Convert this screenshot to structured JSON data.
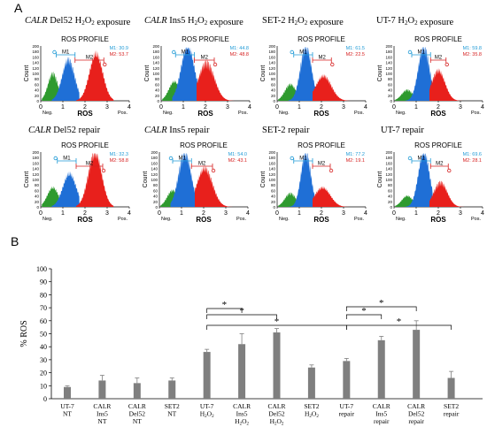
{
  "panel_a": {
    "letter": "A",
    "profile_title": "ROS PROFILE",
    "y_axis_label": "Count",
    "x_axis_label": "ROS",
    "neg_label": "Neg.",
    "pos_label": "Pos.",
    "gate1_label": "M1",
    "gate2_label": "M2",
    "x_ticks": [
      "0",
      "1",
      "2",
      "3",
      "4"
    ],
    "y_ticks": [
      "0",
      "20",
      "40",
      "60",
      "80",
      "100",
      "120",
      "140",
      "160",
      "180",
      "200"
    ],
    "colors": {
      "negative": "#2e9a2e",
      "mid": "#1f6fd6",
      "positive": "#e8201c",
      "m1_text": "#1f9ad6",
      "m2_text": "#d62020"
    },
    "plots": [
      {
        "title_italic": "CALR",
        "title_rest": " Del52 H2O2 exposure",
        "m1_text": "M1: 30.9",
        "m2_text": "M2: 53.7"
      },
      {
        "title_italic": "CALR",
        "title_rest": " Ins5 H2O2 exposure",
        "m1_text": "M1: 44.8",
        "m2_text": "M2: 48.8"
      },
      {
        "title_italic": "",
        "title_rest": "SET-2 H2O2 exposure",
        "m1_text": "M1: 61.5",
        "m2_text": "M2: 22.5"
      },
      {
        "title_italic": "",
        "title_rest": "UT-7 H2O2 exposure",
        "m1_text": "M1: 59.8",
        "m2_text": "M2: 35.8"
      },
      {
        "title_italic": "CALR",
        "title_rest": " Del52 repair",
        "m1_text": "M1: 32.3",
        "m2_text": "M2: 58.8"
      },
      {
        "title_italic": "CALR",
        "title_rest": " Ins5 repair",
        "m1_text": "M1: 54.0",
        "m2_text": "M2: 43.1"
      },
      {
        "title_italic": "",
        "title_rest": "SET-2 repair",
        "m1_text": "M1: 77.2",
        "m2_text": "M2: 19.1"
      },
      {
        "title_italic": "",
        "title_rest": "UT-7 repair",
        "m1_text": "M1: 69.6",
        "m2_text": "M2: 28.1"
      }
    ]
  },
  "chart_data": {
    "type": "bar",
    "letter": "B",
    "ylabel": "% ROS",
    "ylim": [
      0,
      100
    ],
    "yticks": [
      0,
      10,
      20,
      30,
      40,
      50,
      60,
      70,
      80,
      90,
      100
    ],
    "grid": false,
    "bar_color": "#7f7f7f",
    "categories": [
      [
        "UT-7",
        "NT"
      ],
      [
        "CALR",
        "Ins5",
        "NT"
      ],
      [
        "CALR",
        "Del52",
        "NT"
      ],
      [
        "SET2",
        "NT"
      ],
      [
        "UT-7",
        "H2O2"
      ],
      [
        "CALR",
        "Ins5",
        "H2O2"
      ],
      [
        "CALR",
        "Del52",
        "H2O2"
      ],
      [
        "SET2",
        "H2O2"
      ],
      [
        "UT-7",
        "repair"
      ],
      [
        "CALR",
        "Ins5",
        "repair"
      ],
      [
        "CALR",
        "Del52",
        "repair"
      ],
      [
        "SET2",
        "repair"
      ]
    ],
    "values": [
      9,
      14,
      12,
      14,
      36,
      42,
      51,
      24,
      29,
      45,
      53,
      16
    ],
    "errors": [
      1,
      4,
      4,
      2,
      2,
      8,
      3,
      2,
      2,
      3,
      7,
      5
    ],
    "significance_brackets": [
      {
        "from": 4,
        "to": 5,
        "label": "*"
      },
      {
        "from": 4,
        "to": 6,
        "label": "*"
      },
      {
        "from": 4,
        "to": 8,
        "label": "*"
      },
      {
        "from": 8,
        "to": 10,
        "label": "*"
      },
      {
        "from": 8,
        "to": 9,
        "label": "*"
      },
      {
        "from": 8,
        "to": 11,
        "label": "*"
      }
    ]
  }
}
